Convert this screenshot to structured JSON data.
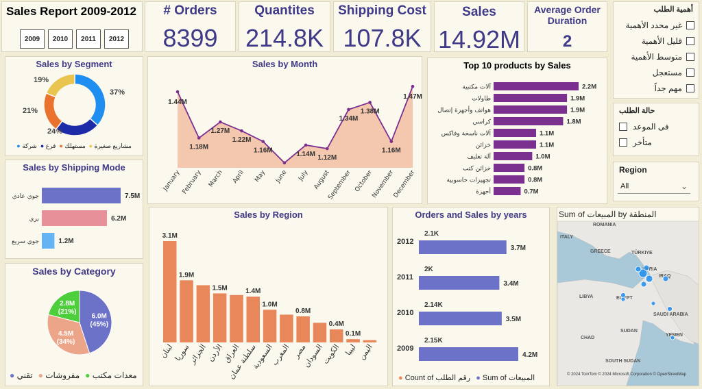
{
  "header": {
    "title": "Sales Report 2009-2012",
    "years": [
      "2009",
      "2010",
      "2011",
      "2012"
    ]
  },
  "kpis": {
    "orders": {
      "label": "# Orders",
      "value": "8399"
    },
    "quantities": {
      "label": "Quantites",
      "value": "214.8K"
    },
    "shipping": {
      "label": "Shipping Cost",
      "value": "107.8K"
    },
    "sales": {
      "label": "Sales",
      "value": "14.92M"
    },
    "duration": {
      "label": "Average Order Duration",
      "value": "2"
    }
  },
  "slicers": {
    "priority": {
      "title": "أهمية الطلب",
      "items": [
        "غير محدد الأهمية",
        "قليل الأهمية",
        "متوسط الأهمية",
        "مستعجل",
        "مهم جداً"
      ]
    },
    "status": {
      "title": "حالة الطلب",
      "items": [
        "فى الموعد",
        "متأخر"
      ]
    },
    "region": {
      "title": "Region",
      "value": "All"
    }
  },
  "colors": {
    "title": "#3f3a87",
    "purple": "#7b2f8f",
    "salmon": "#e8875a",
    "navy": "#2a2a9e",
    "blue": "#5b8fe6"
  },
  "chart_data": [
    {
      "id": "segment",
      "type": "donut",
      "title": "Sales by Segment",
      "categories": [
        "شركة",
        "فرع",
        "مستهلك",
        "مشاريع صغيرة"
      ],
      "values": [
        37,
        24,
        21,
        19
      ],
      "labels": [
        "37%",
        "24%",
        "21%",
        "19%"
      ],
      "colors": [
        "#1f8ef1",
        "#1e2ba8",
        "#e8722e",
        "#e9c550"
      ]
    },
    {
      "id": "month",
      "type": "area",
      "title": "Sales by Month",
      "categories": [
        "January",
        "February",
        "March",
        "April",
        "May",
        "June",
        "July",
        "August",
        "September",
        "October",
        "November",
        "December"
      ],
      "values": [
        1.44,
        1.18,
        1.27,
        1.22,
        1.16,
        1.04,
        1.14,
        1.12,
        1.34,
        1.38,
        1.16,
        1.47
      ],
      "labels": [
        "1.44M",
        "1.18M",
        "1.27M",
        "1.22M",
        "1.16M",
        "",
        "1.14M",
        "1.12M",
        "1.34M",
        "1.38M",
        "1.16M",
        "1.47M"
      ]
    },
    {
      "id": "products",
      "type": "bar",
      "title": "Top 10 products by Sales",
      "categories": [
        "آلات مكتبية",
        "طاولات",
        "هواتف وأجهزة إتصال",
        "كراسي",
        "آلات ناسخة وفاكس",
        "خزائن",
        "آلة تغليف",
        "خزائن كتب",
        "تجهيزات حاسوبية",
        "أجهزة"
      ],
      "values": [
        2.2,
        1.9,
        1.9,
        1.8,
        1.1,
        1.1,
        1.0,
        0.8,
        0.8,
        0.7
      ],
      "labels": [
        "2.2M",
        "1.9M",
        "1.9M",
        "1.8M",
        "1.1M",
        "1.1M",
        "1.0M",
        "0.8M",
        "0.8M",
        "0.7M"
      ]
    },
    {
      "id": "shipping",
      "type": "bar",
      "title": "Sales by Shipping Mode",
      "categories": [
        "جوي عادي",
        "بري",
        "جوي سريع"
      ],
      "values": [
        7.5,
        6.2,
        1.2
      ],
      "labels": [
        "7.5M",
        "6.2M",
        "1.2M"
      ],
      "colors": [
        "#6b72c8",
        "#e8909a",
        "#64b3f4"
      ]
    },
    {
      "id": "region",
      "type": "bar",
      "title": "Sales by Region",
      "categories": [
        "لبنان",
        "سوريا",
        "الجزائر",
        "الأردن",
        "العراق",
        "سلطنة عمان",
        "السعودية",
        "المغرب",
        "مصر",
        "السودان",
        "الكويت",
        "ليبيا",
        "اليمن"
      ],
      "values": [
        3.1,
        1.9,
        1.75,
        1.5,
        1.45,
        1.4,
        1.0,
        0.85,
        0.8,
        0.6,
        0.4,
        0.1,
        0.07
      ],
      "labels": [
        "3.1M",
        "1.9M",
        "",
        "1.5M",
        "",
        "1.4M",
        "1.0M",
        "",
        "0.8M",
        "",
        "0.4M",
        "0.1M",
        ""
      ]
    },
    {
      "id": "years",
      "type": "bar",
      "title": "Orders and Sales by years",
      "categories": [
        "2012",
        "2011",
        "2010",
        "2009"
      ],
      "series": [
        {
          "name": "Count of رقم الطلب",
          "values": [
            2.1,
            2.0,
            2.14,
            2.15
          ],
          "labels": [
            "2.1K",
            "2K",
            "2.14K",
            "2.15K"
          ]
        },
        {
          "name": "Sum of المبيعات",
          "values": [
            3.7,
            3.4,
            3.5,
            4.2
          ],
          "labels": [
            "3.7M",
            "3.4M",
            "3.5M",
            "4.2M"
          ]
        }
      ]
    },
    {
      "id": "category",
      "type": "pie",
      "title": "Sales by Category",
      "categories": [
        "تقني",
        "مفروشات",
        "معدات مكتب"
      ],
      "values": [
        45,
        34,
        21
      ],
      "labels": [
        "6.0M",
        "4.5M",
        "2.8M"
      ],
      "pct": [
        "(45%)",
        "(34%)",
        "(21%)"
      ],
      "colors": [
        "#6b72c8",
        "#eda58a",
        "#4ccf3a"
      ]
    }
  ],
  "map": {
    "title": "Sum of المبيعات by المنطقة",
    "places": [
      "ROMANIA",
      "ITALY",
      "GREECE",
      "TÜRKIYE",
      "SYRIA",
      "IRAQ",
      "LIBYA",
      "EGYPT",
      "SAUDI ARABIA",
      "CHAD",
      "SUDAN",
      "YEMEN",
      "SOUTH SUDAN"
    ],
    "credit": "© 2024 TomTom © 2024 Microsoft Corporation © OpenStreetMap"
  }
}
